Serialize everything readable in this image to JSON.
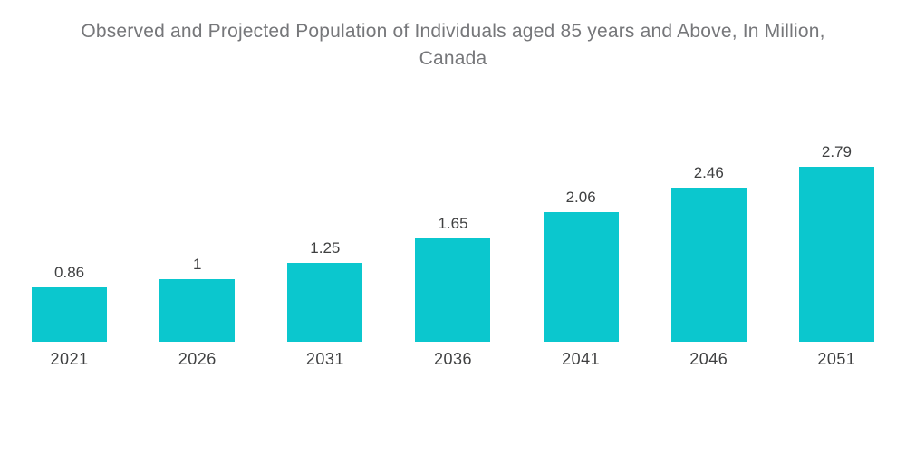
{
  "header": {
    "title_line1": "Observed and Projected Population of Individuals aged 85 years and Above, In Million,",
    "title_line2": "Canada"
  },
  "colors": {
    "background": "#ffffff",
    "bar": "#0bc7ce",
    "title": "#76777a",
    "label": "#3f4041"
  },
  "chart_data": {
    "type": "bar",
    "title": "Observed and Projected Population of Individuals aged 85 years and Above, In Million, Canada",
    "categories": [
      "2021",
      "2026",
      "2031",
      "2036",
      "2041",
      "2046",
      "2051"
    ],
    "values": [
      0.86,
      1,
      1.25,
      1.65,
      2.06,
      2.46,
      2.79
    ],
    "value_labels": [
      "0.86",
      "1",
      "1.25",
      "1.65",
      "2.06",
      "2.46",
      "2.79"
    ],
    "xlabel": "",
    "ylabel": "",
    "ylim": [
      0,
      2.9
    ],
    "grid": false,
    "legend": false,
    "axes_visible": false
  }
}
